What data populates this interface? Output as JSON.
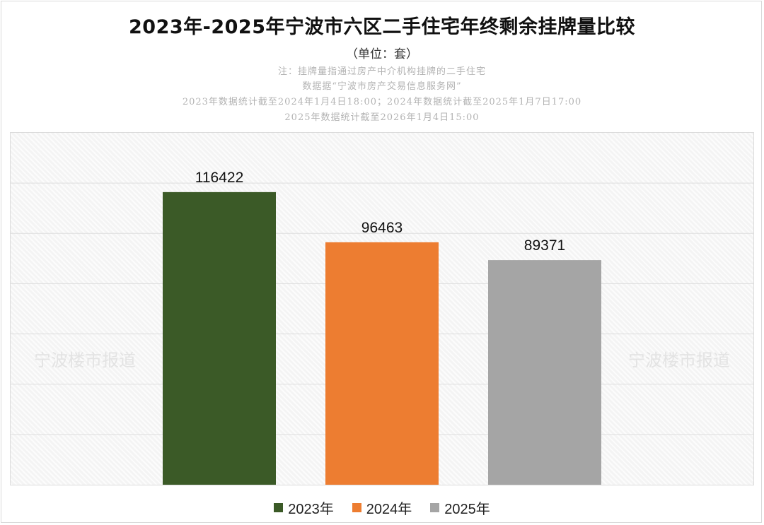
{
  "chart_data": {
    "type": "bar",
    "title": "2023年-2025年宁波市六区二手住宅年终剩余挂牌量比较",
    "subtitle": "（单位：套）",
    "notes": [
      "注：挂牌量指通过房产中介机构挂牌的二手住宅",
      "数据据“宁波市房产交易信息服务网”",
      "2023年数据统计截至2024年1月4日18:00；2024年数据统计截至2025年1月7日17:00",
      "2025年数据统计截至2026年1月4日15:00"
    ],
    "categories": [
      "2023年",
      "2024年",
      "2025年"
    ],
    "series": [
      {
        "name": "2023年",
        "color": "#3b5a27",
        "values": [
          116422,
          null,
          null
        ]
      },
      {
        "name": "2024年",
        "color": "#ed7d31",
        "values": [
          null,
          96463,
          null
        ]
      },
      {
        "name": "2025年",
        "color": "#a5a5a5",
        "values": [
          null,
          null,
          89371
        ]
      }
    ],
    "ylim": [
      0,
      140000
    ],
    "ytick_step": 20000,
    "grid": true,
    "legend_position": "bottom",
    "data_labels": true
  },
  "watermark": {
    "text": "宁波楼市报道",
    "color": "#e3e3e3"
  }
}
